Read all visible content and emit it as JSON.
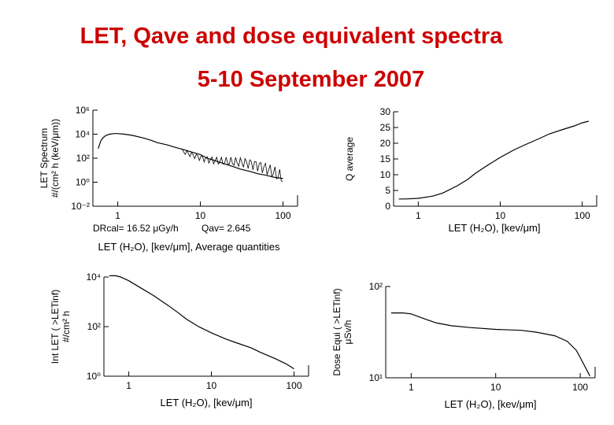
{
  "header": {
    "title": "LET, Qave and dose equivalent spectra",
    "subtitle": "5-10 September 2007"
  },
  "chart_data": [
    {
      "id": "let-spectrum",
      "type": "line",
      "ylabel_line1": "LET Spectrum",
      "ylabel_line2": "#/(cm² h (keV/μm))",
      "x_ticks": [
        "1",
        "10",
        "100"
      ],
      "y_ticks": [
        "10⁻²",
        "10⁰",
        "10²",
        "10⁴",
        "10⁶"
      ],
      "xlim": [
        0.5,
        150
      ],
      "ylim_log10": [
        -2,
        6
      ],
      "xscale": "log",
      "yscale": "log",
      "annotation_dose": "DRcal= 16.52 μGy/h",
      "annotation_qav": "Qav= 2.645",
      "xlabel": "LET (H₂O), [kev/μm], Average quantities",
      "x": [
        0.58,
        0.62,
        0.66,
        0.72,
        0.8,
        0.9,
        1.0,
        1.2,
        1.5,
        2.0,
        2.5,
        3.0,
        4.0,
        5.0,
        6.0,
        8.0,
        10,
        12,
        15,
        20,
        25,
        30,
        40,
        50,
        60,
        80,
        100
      ],
      "y_log10": [
        2.8,
        3.4,
        3.7,
        3.9,
        4.0,
        4.05,
        4.05,
        4.0,
        3.9,
        3.7,
        3.5,
        3.3,
        3.1,
        2.9,
        2.75,
        2.5,
        2.3,
        2.0,
        1.8,
        1.5,
        1.3,
        1.1,
        0.9,
        0.7,
        0.6,
        0.4,
        0.3
      ]
    },
    {
      "id": "q-average",
      "type": "line",
      "ylabel": "Q average",
      "xlabel": "LET (H₂O), [kev/μm]",
      "x_ticks": [
        "1",
        "10",
        "100"
      ],
      "y_ticks": [
        "0",
        "5",
        "10",
        "15",
        "20",
        "25",
        "30"
      ],
      "xlim": [
        0.5,
        150
      ],
      "ylim": [
        0,
        30
      ],
      "xscale": "log",
      "x": [
        0.58,
        0.7,
        1.0,
        1.5,
        2.0,
        3.0,
        4.0,
        5.0,
        7.0,
        10,
        15,
        20,
        30,
        40,
        60,
        80,
        100,
        120
      ],
      "y": [
        2.3,
        2.3,
        2.5,
        3.2,
        4.2,
        6.5,
        8.5,
        10.5,
        13.0,
        15.5,
        18.0,
        19.5,
        21.5,
        23.0,
        24.5,
        25.5,
        26.5,
        27.0
      ]
    },
    {
      "id": "integral-let",
      "type": "line",
      "ylabel_line1": "Int LET ( >LETinf)",
      "ylabel_line2": "#/cm² h",
      "xlabel": "LET (H₂O), [kev/μm]",
      "x_ticks": [
        "1",
        "10",
        "100"
      ],
      "y_ticks": [
        "10⁰",
        "10²",
        "10⁴"
      ],
      "xlim": [
        0.5,
        150
      ],
      "ylim_log10": [
        0,
        4
      ],
      "xscale": "log",
      "yscale": "log",
      "x": [
        0.58,
        0.7,
        0.8,
        1.0,
        1.5,
        2.0,
        3.0,
        4.0,
        5.0,
        7.0,
        10,
        15,
        20,
        30,
        40,
        60,
        80,
        100
      ],
      "y_log10": [
        4.05,
        4.05,
        4.0,
        3.85,
        3.5,
        3.25,
        2.85,
        2.55,
        2.3,
        2.0,
        1.75,
        1.5,
        1.35,
        1.15,
        0.95,
        0.7,
        0.5,
        0.3
      ]
    },
    {
      "id": "dose-equivalent",
      "type": "line",
      "ylabel_line1": "Dose Equi ( >LETinf)",
      "ylabel_line2": "μSv/h",
      "xlabel": "LET (H₂O), [kev/μm]",
      "x_ticks": [
        "1",
        "10",
        "100"
      ],
      "y_ticks": [
        "10¹",
        "10²"
      ],
      "xlim": [
        0.5,
        150
      ],
      "ylim_log10": [
        1,
        2
      ],
      "xscale": "log",
      "yscale": "log",
      "x": [
        0.58,
        0.8,
        1.0,
        1.5,
        2.0,
        3.0,
        5.0,
        10,
        20,
        30,
        50,
        70,
        90,
        110,
        130
      ],
      "y_log10": [
        1.71,
        1.71,
        1.7,
        1.64,
        1.6,
        1.57,
        1.55,
        1.53,
        1.52,
        1.5,
        1.46,
        1.4,
        1.3,
        1.15,
        1.02
      ]
    }
  ]
}
